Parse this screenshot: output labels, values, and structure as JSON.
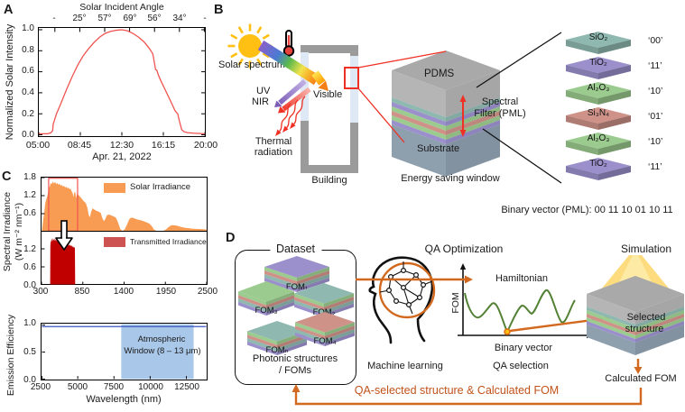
{
  "colors": {
    "curve_red": "#f0524f",
    "solar_orange": "#f89c54",
    "transmitted_dark_red": "#c00000",
    "transmitted_legend": "#cd5352",
    "highlight_box_red": "#f0524f",
    "atm_window_blue": "#a9c7e8",
    "emissivity_line_blue": "#3b54c4",
    "sio2": "#8fb8b0",
    "tio2": "#9b90cc",
    "al2o3": "#9ccb8f",
    "si3n4": "#ce9289",
    "pdms_gray": "#b5b5b5",
    "pdms_top": "#a9a9a9",
    "substrate_gray": "#8e9fae",
    "building_gray": "#9b9b9b",
    "window_glass": "#dfe8f5",
    "sun_yellow": "#ffc013",
    "uv_purple": "#8f6fc0",
    "nir_red": "#f3655c",
    "green_curve": "#538135",
    "orange_arrow": "#d2691e",
    "feedback_text_orange": "#c0531a",
    "connector_red": "#ee3124"
  },
  "panels": {
    "A": {
      "label": "A",
      "top_axis_title": "Solar Incident Angle",
      "top_ticks": [
        "-",
        "25°",
        "57°",
        "69°",
        "56°",
        "34°",
        "-"
      ],
      "ylabel": "Normalized Solar Intensity",
      "yticks": [
        "1.0",
        "0.8",
        "0.6",
        "0.4",
        "0.2",
        "0.0"
      ],
      "xticks": [
        "05:00",
        "08:45",
        "12:30",
        "16:15",
        "20:00"
      ],
      "xlabel": "Apr. 21, 2022"
    },
    "B": {
      "label": "B",
      "sun_label": "Solar spectrum",
      "uv": "UV",
      "nir": "NIR",
      "visible": "Visible",
      "thermal_line1": "Thermal",
      "thermal_line2": "radiation",
      "building": "Building",
      "pdms": "PDMS",
      "filter_line1": "Spectral",
      "filter_line2": "Filter (PML)",
      "substrate": "Substrate",
      "window_caption": "Energy saving window",
      "stack": [
        {
          "material": "SiO₂",
          "bit": "‘00’",
          "color": "sio2"
        },
        {
          "material": "TiO₂",
          "bit": "‘11’",
          "color": "tio2"
        },
        {
          "material": "Al₂O₃",
          "bit": "‘10’",
          "color": "al2o3"
        },
        {
          "material": "Si₃N₄",
          "bit": "‘01’",
          "color": "si3n4"
        },
        {
          "material": "Al₂O₃",
          "bit": "‘10’",
          "color": "al2o3"
        },
        {
          "material": "TiO₂",
          "bit": "‘11’",
          "color": "tio2"
        }
      ],
      "binary_vector": "Binary vector (PML): 00 11 10 01 10 11"
    },
    "C": {
      "label": "C",
      "ylabel_line1": "Spectral Irradiance",
      "ylabel_line2": "(W m⁻² nm⁻¹)",
      "legend_solar": "Solar Irradiance",
      "legend_transmitted": "Transmitted Irradiance",
      "irr_yticks_top": [
        "1.8",
        "1.2",
        "0.6"
      ],
      "irr_yticks_bottom": [
        "1.2",
        "0.6",
        "0.0"
      ],
      "irr_xticks": [
        "300",
        "850",
        "1400",
        "1950",
        "2500"
      ],
      "emission_ylabel": "Emission Efficiency",
      "emission_yticks": [
        "1.0",
        "0.5",
        "0.0"
      ],
      "emission_xticks": [
        "2500",
        "5000",
        "7500",
        "10000",
        "12500"
      ],
      "atm_line1": "Atmospheric",
      "atm_line2": "Window (8 – 13 μm)",
      "xlabel": "Wavelength (nm)"
    },
    "D": {
      "label": "D",
      "dataset_title": "Dataset",
      "blocks": [
        {
          "label": "FOM₁",
          "top": "tio2"
        },
        {
          "label": "FOM₃",
          "top": "al2o3"
        },
        {
          "label": "FOM₂",
          "top": "sio2"
        },
        {
          "label": "FOMₙ",
          "top": "sio2"
        },
        {
          "label": "FOM₄",
          "top": "si3n4"
        }
      ],
      "dataset_caption1": "Photonic structures",
      "dataset_caption2": "/ FOMs",
      "ml_label": "Machine learning",
      "qa_title": "QA Optimization",
      "hamiltonian": "Hamiltonian",
      "fom_axis": "FOM",
      "binary_axis": "Binary vector",
      "qa_selection": "QA selection",
      "sim_title": "Simulation",
      "selected_line1": "Selected",
      "selected_line2": "structure",
      "calculated_fom": "Calculated FOM",
      "feedback": "QA-selected structure & Calculated FOM"
    }
  },
  "chart_data": [
    {
      "id": "solar_intensity",
      "type": "line",
      "title": "Solar Incident Angle",
      "xlabel": "Apr. 21, 2022",
      "ylabel": "Normalized Solar Intensity",
      "x_range_hours": [
        5,
        20
      ],
      "ylim": [
        0,
        1
      ],
      "top_axis_ticks": [
        "-",
        "25°",
        "57°",
        "69°",
        "56°",
        "34°",
        "-"
      ],
      "x_tick_hours": [
        5,
        8.75,
        12.5,
        16.25,
        20
      ],
      "points": [
        [
          5,
          0.01
        ],
        [
          5.8,
          0.01
        ],
        [
          6.1,
          0.02
        ],
        [
          6.25,
          0.04
        ],
        [
          6.3,
          0.1
        ],
        [
          6.6,
          0.2
        ],
        [
          7,
          0.3
        ],
        [
          7.5,
          0.43
        ],
        [
          8,
          0.55
        ],
        [
          8.5,
          0.66
        ],
        [
          9,
          0.75
        ],
        [
          9.5,
          0.82
        ],
        [
          10,
          0.88
        ],
        [
          10.5,
          0.93
        ],
        [
          11,
          0.965
        ],
        [
          11.5,
          0.985
        ],
        [
          12,
          0.995
        ],
        [
          12.5,
          1.0
        ],
        [
          13,
          0.99
        ],
        [
          13.5,
          0.965
        ],
        [
          14,
          0.93
        ],
        [
          14.5,
          0.885
        ],
        [
          15,
          0.82
        ],
        [
          15.3,
          0.77
        ],
        [
          15.45,
          0.68
        ],
        [
          15.55,
          0.62
        ],
        [
          15.65,
          0.615
        ],
        [
          15.8,
          0.57
        ],
        [
          16,
          0.52
        ],
        [
          16.5,
          0.41
        ],
        [
          17,
          0.3
        ],
        [
          17.3,
          0.23
        ],
        [
          17.45,
          0.21
        ],
        [
          17.55,
          0.2
        ],
        [
          17.7,
          0.13
        ],
        [
          17.9,
          0.05
        ],
        [
          18.1,
          0.03
        ],
        [
          18.4,
          0.02
        ],
        [
          19,
          0.015
        ],
        [
          20,
          0.01
        ]
      ]
    },
    {
      "id": "solar_irradiance",
      "type": "area",
      "series": "Solar Irradiance",
      "xlim": [
        300,
        2500
      ],
      "ylim": [
        0,
        1.8
      ],
      "x_unit": "nm",
      "visible_highlight_nm": [
        395,
        780
      ],
      "points": [
        [
          305,
          0
        ],
        [
          320,
          0.35
        ],
        [
          335,
          0.6
        ],
        [
          350,
          0.95
        ],
        [
          365,
          1.1
        ],
        [
          380,
          1.2
        ],
        [
          395,
          1.45
        ],
        [
          410,
          1.5
        ],
        [
          420,
          1.62
        ],
        [
          435,
          1.58
        ],
        [
          450,
          1.67
        ],
        [
          465,
          1.6
        ],
        [
          480,
          1.66
        ],
        [
          495,
          1.58
        ],
        [
          510,
          1.63
        ],
        [
          525,
          1.56
        ],
        [
          540,
          1.6
        ],
        [
          555,
          1.53
        ],
        [
          570,
          1.56
        ],
        [
          585,
          1.5
        ],
        [
          600,
          1.53
        ],
        [
          615,
          1.47
        ],
        [
          630,
          1.5
        ],
        [
          645,
          1.44
        ],
        [
          660,
          1.47
        ],
        [
          675,
          1.41
        ],
        [
          690,
          1.43
        ],
        [
          700,
          1.35
        ],
        [
          715,
          1.28
        ],
        [
          725,
          1.15
        ],
        [
          735,
          1.3
        ],
        [
          750,
          1.32
        ],
        [
          760,
          1.1
        ],
        [
          770,
          1.25
        ],
        [
          790,
          1.22
        ],
        [
          810,
          1.18
        ],
        [
          830,
          1.12
        ],
        [
          850,
          1.05
        ],
        [
          870,
          1.0
        ],
        [
          890,
          0.95
        ],
        [
          910,
          0.8
        ],
        [
          930,
          0.55
        ],
        [
          945,
          0.48
        ],
        [
          960,
          0.65
        ],
        [
          980,
          0.78
        ],
        [
          1000,
          0.74
        ],
        [
          1030,
          0.7
        ],
        [
          1060,
          0.67
        ],
        [
          1090,
          0.62
        ],
        [
          1110,
          0.45
        ],
        [
          1130,
          0.35
        ],
        [
          1150,
          0.42
        ],
        [
          1170,
          0.55
        ],
        [
          1200,
          0.57
        ],
        [
          1230,
          0.54
        ],
        [
          1260,
          0.51
        ],
        [
          1290,
          0.47
        ],
        [
          1320,
          0.3
        ],
        [
          1350,
          0.08
        ],
        [
          1380,
          0.03
        ],
        [
          1410,
          0.08
        ],
        [
          1440,
          0.25
        ],
        [
          1470,
          0.42
        ],
        [
          1500,
          0.47
        ],
        [
          1530,
          0.45
        ],
        [
          1560,
          0.42
        ],
        [
          1590,
          0.4
        ],
        [
          1620,
          0.38
        ],
        [
          1650,
          0.36
        ],
        [
          1680,
          0.33
        ],
        [
          1710,
          0.3
        ],
        [
          1740,
          0.26
        ],
        [
          1770,
          0.18
        ],
        [
          1800,
          0.07
        ],
        [
          1830,
          0.03
        ],
        [
          1860,
          0.02
        ],
        [
          1890,
          0.02
        ],
        [
          1920,
          0.03
        ],
        [
          1950,
          0.06
        ],
        [
          1980,
          0.13
        ],
        [
          2010,
          0.19
        ],
        [
          2040,
          0.22
        ],
        [
          2070,
          0.21
        ],
        [
          2100,
          0.2
        ],
        [
          2130,
          0.18
        ],
        [
          2160,
          0.16
        ],
        [
          2190,
          0.14
        ],
        [
          2220,
          0.13
        ],
        [
          2250,
          0.12
        ],
        [
          2280,
          0.11
        ],
        [
          2310,
          0.1
        ],
        [
          2340,
          0.1
        ],
        [
          2370,
          0.09
        ],
        [
          2400,
          0.09
        ],
        [
          2430,
          0.08
        ],
        [
          2460,
          0.08
        ],
        [
          2500,
          0.07
        ]
      ]
    },
    {
      "id": "transmitted_irradiance",
      "type": "area",
      "series": "Transmitted Irradiance",
      "xlim": [
        300,
        2500
      ],
      "ylim": [
        0,
        1.8
      ],
      "x_unit": "nm",
      "points": [
        [
          415,
          0
        ],
        [
          418,
          1.3
        ],
        [
          425,
          1.5
        ],
        [
          432,
          1.42
        ],
        [
          440,
          1.55
        ],
        [
          448,
          1.45
        ],
        [
          455,
          1.56
        ],
        [
          462,
          1.47
        ],
        [
          470,
          1.55
        ],
        [
          478,
          1.46
        ],
        [
          485,
          1.53
        ],
        [
          492,
          1.45
        ],
        [
          500,
          1.52
        ],
        [
          510,
          1.44
        ],
        [
          520,
          1.5
        ],
        [
          530,
          1.42
        ],
        [
          540,
          1.48
        ],
        [
          550,
          1.4
        ],
        [
          560,
          1.46
        ],
        [
          570,
          1.38
        ],
        [
          580,
          1.44
        ],
        [
          590,
          1.37
        ],
        [
          600,
          1.42
        ],
        [
          610,
          1.35
        ],
        [
          620,
          1.4
        ],
        [
          630,
          1.33
        ],
        [
          640,
          1.38
        ],
        [
          650,
          1.31
        ],
        [
          660,
          1.36
        ],
        [
          670,
          1.3
        ],
        [
          680,
          1.34
        ],
        [
          690,
          1.28
        ],
        [
          700,
          1.32
        ],
        [
          710,
          1.26
        ],
        [
          720,
          1.28
        ],
        [
          730,
          1.24
        ],
        [
          740,
          1.26
        ],
        [
          745,
          1.2
        ],
        [
          748,
          0
        ]
      ]
    },
    {
      "id": "emission_efficiency",
      "type": "line",
      "xlabel": "Wavelength (nm)",
      "ylabel": "Emission Efficiency",
      "xlim": [
        2500,
        13900
      ],
      "ylim": [
        0,
        1
      ],
      "efficiency_value": 0.97,
      "atmospheric_window_nm": [
        8000,
        13000
      ]
    }
  ]
}
